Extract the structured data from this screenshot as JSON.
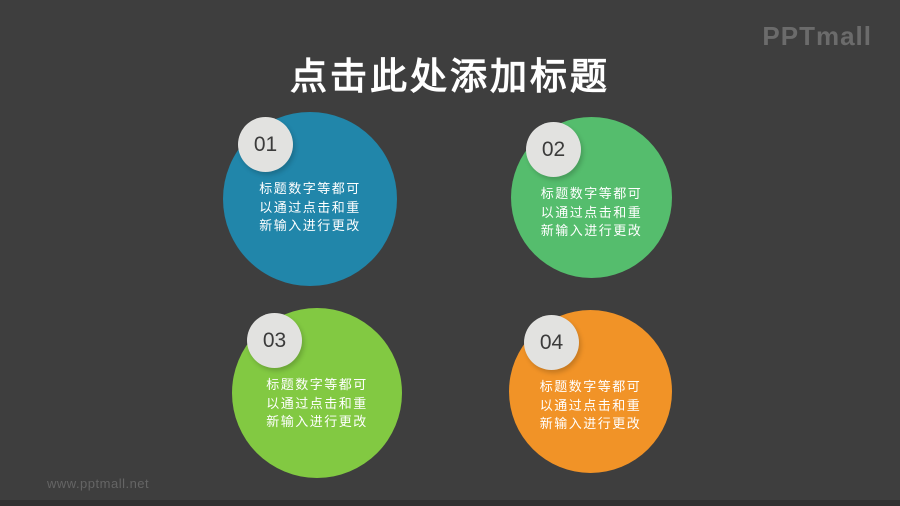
{
  "page": {
    "background": "#3e3e3e",
    "footer_bar_color": "#313131"
  },
  "logo": {
    "text": "PPTmall",
    "color": "#6b6b6b"
  },
  "title": {
    "text": "点击此处添加标题",
    "color": "#ffffff"
  },
  "badge": {
    "color": "#e2e2e0",
    "number_color": "#3b3b3b"
  },
  "item_text_color": "#ffffff",
  "items": [
    {
      "number": "01",
      "color": "#2186aa",
      "lines": [
        "标题数字等都可",
        "以通过点击和重",
        "新输入进行更改"
      ]
    },
    {
      "number": "02",
      "color": "#55bd6d",
      "lines": [
        "标题数字等都可",
        "以通过点击和重",
        "新输入进行更改"
      ]
    },
    {
      "number": "03",
      "color": "#82c942",
      "lines": [
        "标题数字等都可",
        "以通过点击和重",
        "新输入进行更改"
      ]
    },
    {
      "number": "04",
      "color": "#f19327",
      "lines": [
        "标题数字等都可",
        "以通过点击和重",
        "新输入进行更改"
      ]
    }
  ],
  "watermark": {
    "text": "www.pptmall.net",
    "color": "#656565"
  }
}
